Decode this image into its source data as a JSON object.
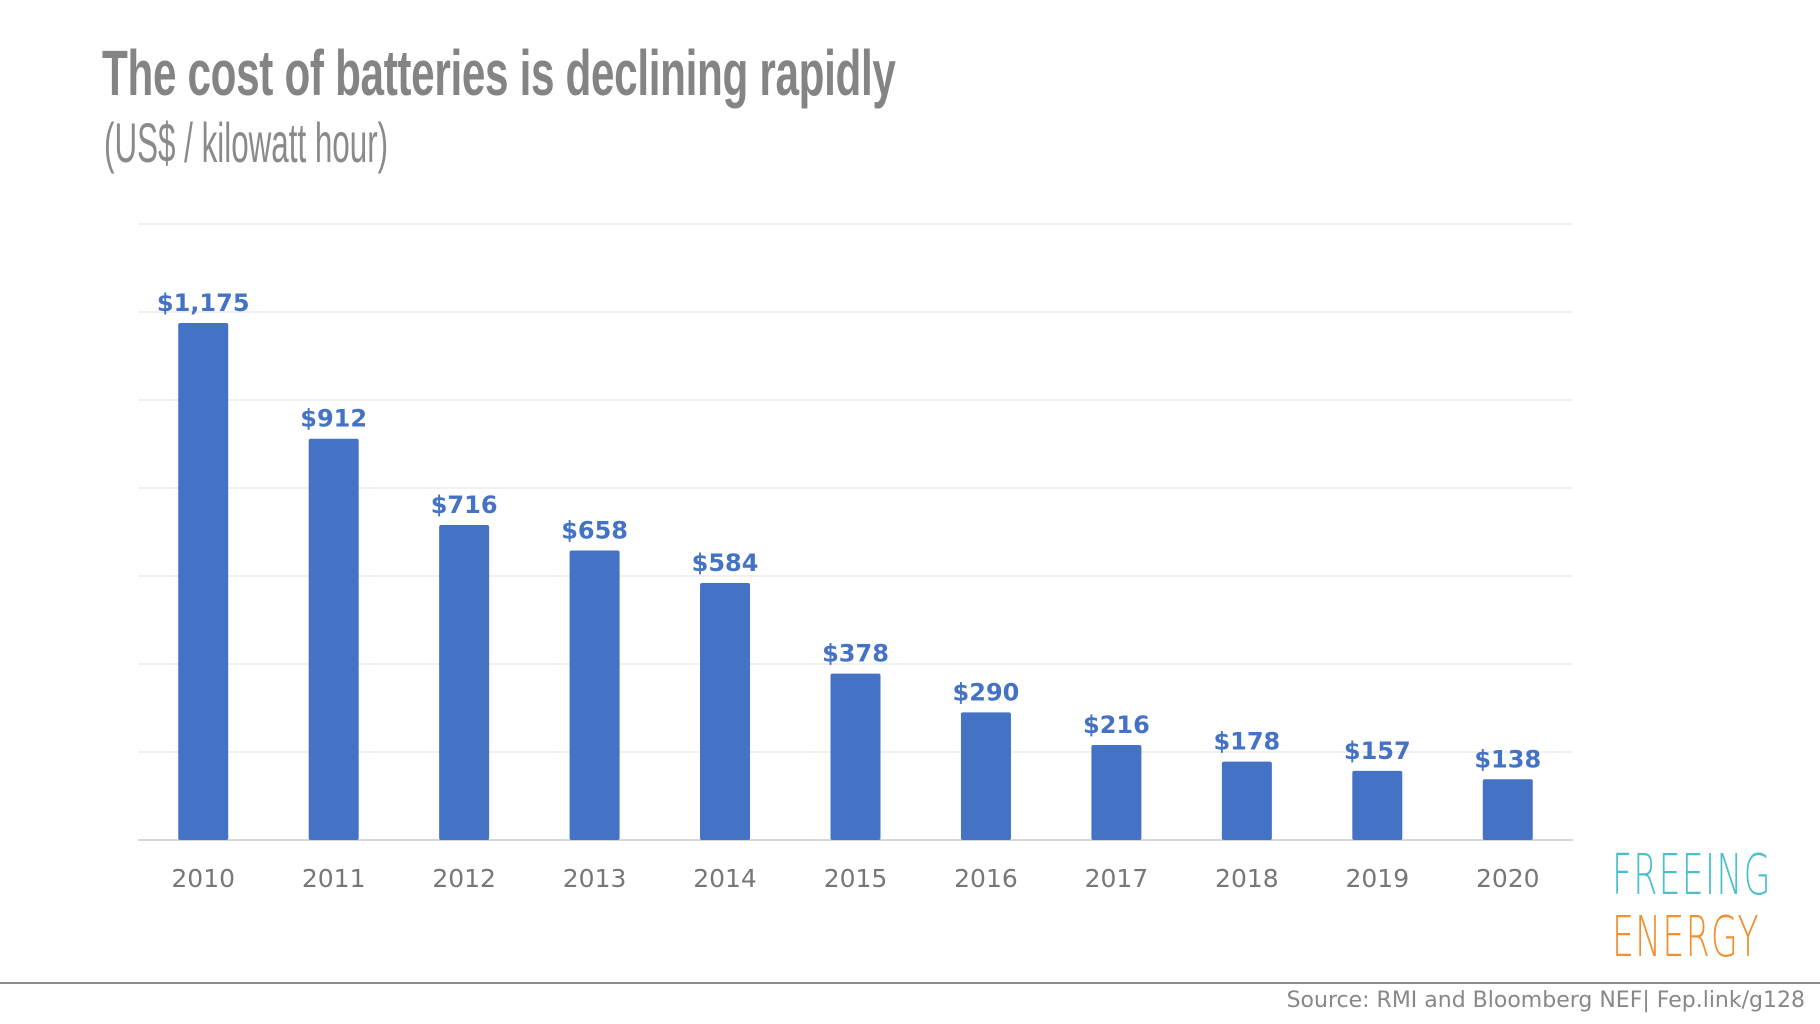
{
  "header": {
    "title": "The cost of batteries is declining rapidly",
    "subtitle": "(US$ / kilowatt hour)"
  },
  "logo": {
    "line1": "FREEING",
    "line2": "ENERGY"
  },
  "footer": {
    "source": "Source: RMI and Bloomberg NEF| Fep.link/g128"
  },
  "colors": {
    "bar": "#4472c4",
    "label": "#4472c4",
    "logo_top": "#4bbfcf",
    "logo_bottom": "#f0902f"
  },
  "chart_data": {
    "type": "bar",
    "title": "The cost of batteries is declining rapidly",
    "subtitle": "(US$ / kilowatt hour)",
    "categories": [
      "2010",
      "2011",
      "2012",
      "2013",
      "2014",
      "2015",
      "2016",
      "2017",
      "2018",
      "2019",
      "2020"
    ],
    "values": [
      1175,
      912,
      716,
      658,
      584,
      378,
      290,
      216,
      178,
      157,
      138
    ],
    "data_labels": [
      "$1,175",
      "$912",
      "$716",
      "$658",
      "$584",
      "$378",
      "$290",
      "$216",
      "$178",
      "$157",
      "$138"
    ],
    "ylim": [
      0,
      1400
    ],
    "grid_step": 200,
    "grid": true,
    "y_tick_labels_shown": false,
    "legend": "none"
  }
}
